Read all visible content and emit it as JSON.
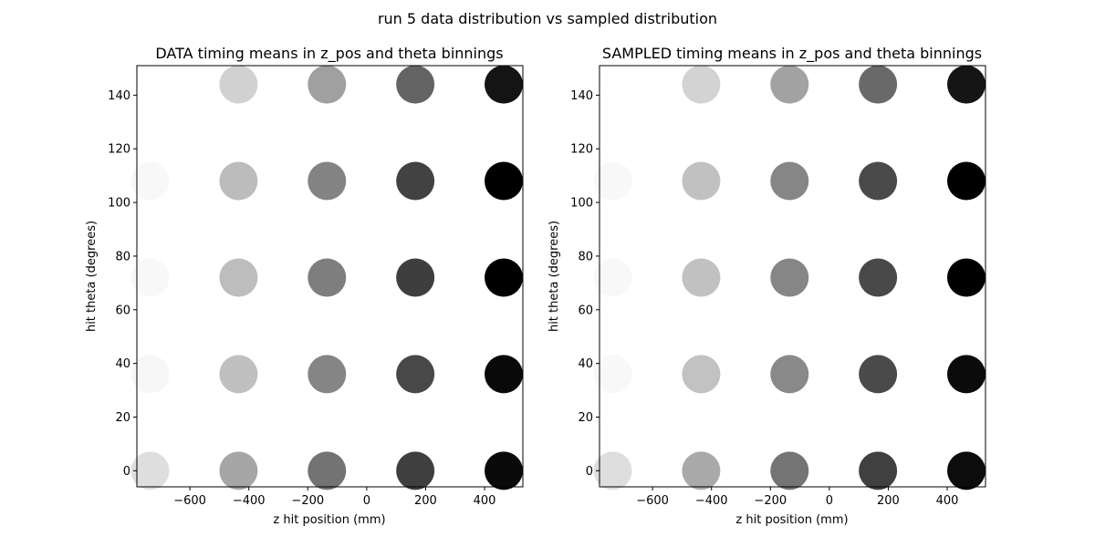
{
  "suptitle": "run 5 data distribution vs sampled distribution",
  "chart_data": [
    {
      "type": "scatter",
      "title": "DATA timing means in z_pos and theta binnings",
      "xlabel": "z hit position (mm)",
      "ylabel": "hit theta (degrees)",
      "xlim": [
        -780,
        530
      ],
      "ylim": [
        -6,
        151
      ],
      "xticks": [
        -600,
        -400,
        -200,
        0,
        200,
        400
      ],
      "xtick_labels": [
        "−600",
        "−400",
        "−200",
        "0",
        "200",
        "400"
      ],
      "yticks": [
        0,
        20,
        40,
        60,
        80,
        100,
        120,
        140
      ],
      "ytick_labels": [
        "0",
        "20",
        "40",
        "60",
        "80",
        "100",
        "120",
        "140"
      ],
      "colormap": "greys",
      "points": [
        {
          "x": -735,
          "y": 0,
          "gray": "#dedede"
        },
        {
          "x": -435,
          "y": 0,
          "gray": "#a6a6a6"
        },
        {
          "x": -135,
          "y": 0,
          "gray": "#737373"
        },
        {
          "x": 165,
          "y": 0,
          "gray": "#3f3f3f"
        },
        {
          "x": 465,
          "y": 0,
          "gray": "#0a0a0a"
        },
        {
          "x": -735,
          "y": 36,
          "gray": "#f7f7f7"
        },
        {
          "x": -435,
          "y": 36,
          "gray": "#c0c0c0"
        },
        {
          "x": -135,
          "y": 36,
          "gray": "#858585"
        },
        {
          "x": 165,
          "y": 36,
          "gray": "#484848"
        },
        {
          "x": 465,
          "y": 36,
          "gray": "#090909"
        },
        {
          "x": -735,
          "y": 72,
          "gray": "#f8f8f8"
        },
        {
          "x": -435,
          "y": 72,
          "gray": "#bdbdbd"
        },
        {
          "x": -135,
          "y": 72,
          "gray": "#7e7e7e"
        },
        {
          "x": 165,
          "y": 72,
          "gray": "#3e3e3e"
        },
        {
          "x": 465,
          "y": 72,
          "gray": "#000000"
        },
        {
          "x": -735,
          "y": 108,
          "gray": "#f8f8f8"
        },
        {
          "x": -435,
          "y": 108,
          "gray": "#bcbcbc"
        },
        {
          "x": -135,
          "y": 108,
          "gray": "#838383"
        },
        {
          "x": 165,
          "y": 108,
          "gray": "#424242"
        },
        {
          "x": 465,
          "y": 108,
          "gray": "#000000"
        },
        {
          "x": -435,
          "y": 144,
          "gray": "#d1d1d1"
        },
        {
          "x": -135,
          "y": 144,
          "gray": "#a0a0a0"
        },
        {
          "x": 165,
          "y": 144,
          "gray": "#646464"
        },
        {
          "x": 465,
          "y": 144,
          "gray": "#141414"
        }
      ]
    },
    {
      "type": "scatter",
      "title": "SAMPLED timing means in z_pos and theta binnings",
      "xlabel": "z hit position (mm)",
      "ylabel": "hit theta (degrees)",
      "xlim": [
        -780,
        530
      ],
      "ylim": [
        -6,
        151
      ],
      "xticks": [
        -600,
        -400,
        -200,
        0,
        200,
        400
      ],
      "xtick_labels": [
        "−600",
        "−400",
        "−200",
        "0",
        "200",
        "400"
      ],
      "yticks": [
        0,
        20,
        40,
        60,
        80,
        100,
        120,
        140
      ],
      "ytick_labels": [
        "0",
        "20",
        "40",
        "60",
        "80",
        "100",
        "120",
        "140"
      ],
      "colormap": "greys",
      "points": [
        {
          "x": -735,
          "y": 0,
          "gray": "#dedede"
        },
        {
          "x": -435,
          "y": 0,
          "gray": "#a9a9a9"
        },
        {
          "x": -135,
          "y": 0,
          "gray": "#747474"
        },
        {
          "x": 165,
          "y": 0,
          "gray": "#404040"
        },
        {
          "x": 465,
          "y": 0,
          "gray": "#0c0c0c"
        },
        {
          "x": -735,
          "y": 36,
          "gray": "#f8f8f8"
        },
        {
          "x": -435,
          "y": 36,
          "gray": "#c2c2c2"
        },
        {
          "x": -135,
          "y": 36,
          "gray": "#898989"
        },
        {
          "x": 165,
          "y": 36,
          "gray": "#4a4a4a"
        },
        {
          "x": 465,
          "y": 36,
          "gray": "#0b0b0b"
        },
        {
          "x": -735,
          "y": 72,
          "gray": "#f8f8f8"
        },
        {
          "x": -435,
          "y": 72,
          "gray": "#c1c1c1"
        },
        {
          "x": -135,
          "y": 72,
          "gray": "#868686"
        },
        {
          "x": 165,
          "y": 72,
          "gray": "#494949"
        },
        {
          "x": 465,
          "y": 72,
          "gray": "#000000"
        },
        {
          "x": -735,
          "y": 108,
          "gray": "#f8f8f8"
        },
        {
          "x": -435,
          "y": 108,
          "gray": "#c1c1c1"
        },
        {
          "x": -135,
          "y": 108,
          "gray": "#868686"
        },
        {
          "x": 165,
          "y": 108,
          "gray": "#4a4a4a"
        },
        {
          "x": 465,
          "y": 108,
          "gray": "#000000"
        },
        {
          "x": -435,
          "y": 144,
          "gray": "#d3d3d3"
        },
        {
          "x": -135,
          "y": 144,
          "gray": "#a2a2a2"
        },
        {
          "x": 165,
          "y": 144,
          "gray": "#696969"
        },
        {
          "x": 465,
          "y": 144,
          "gray": "#151515"
        }
      ]
    }
  ]
}
